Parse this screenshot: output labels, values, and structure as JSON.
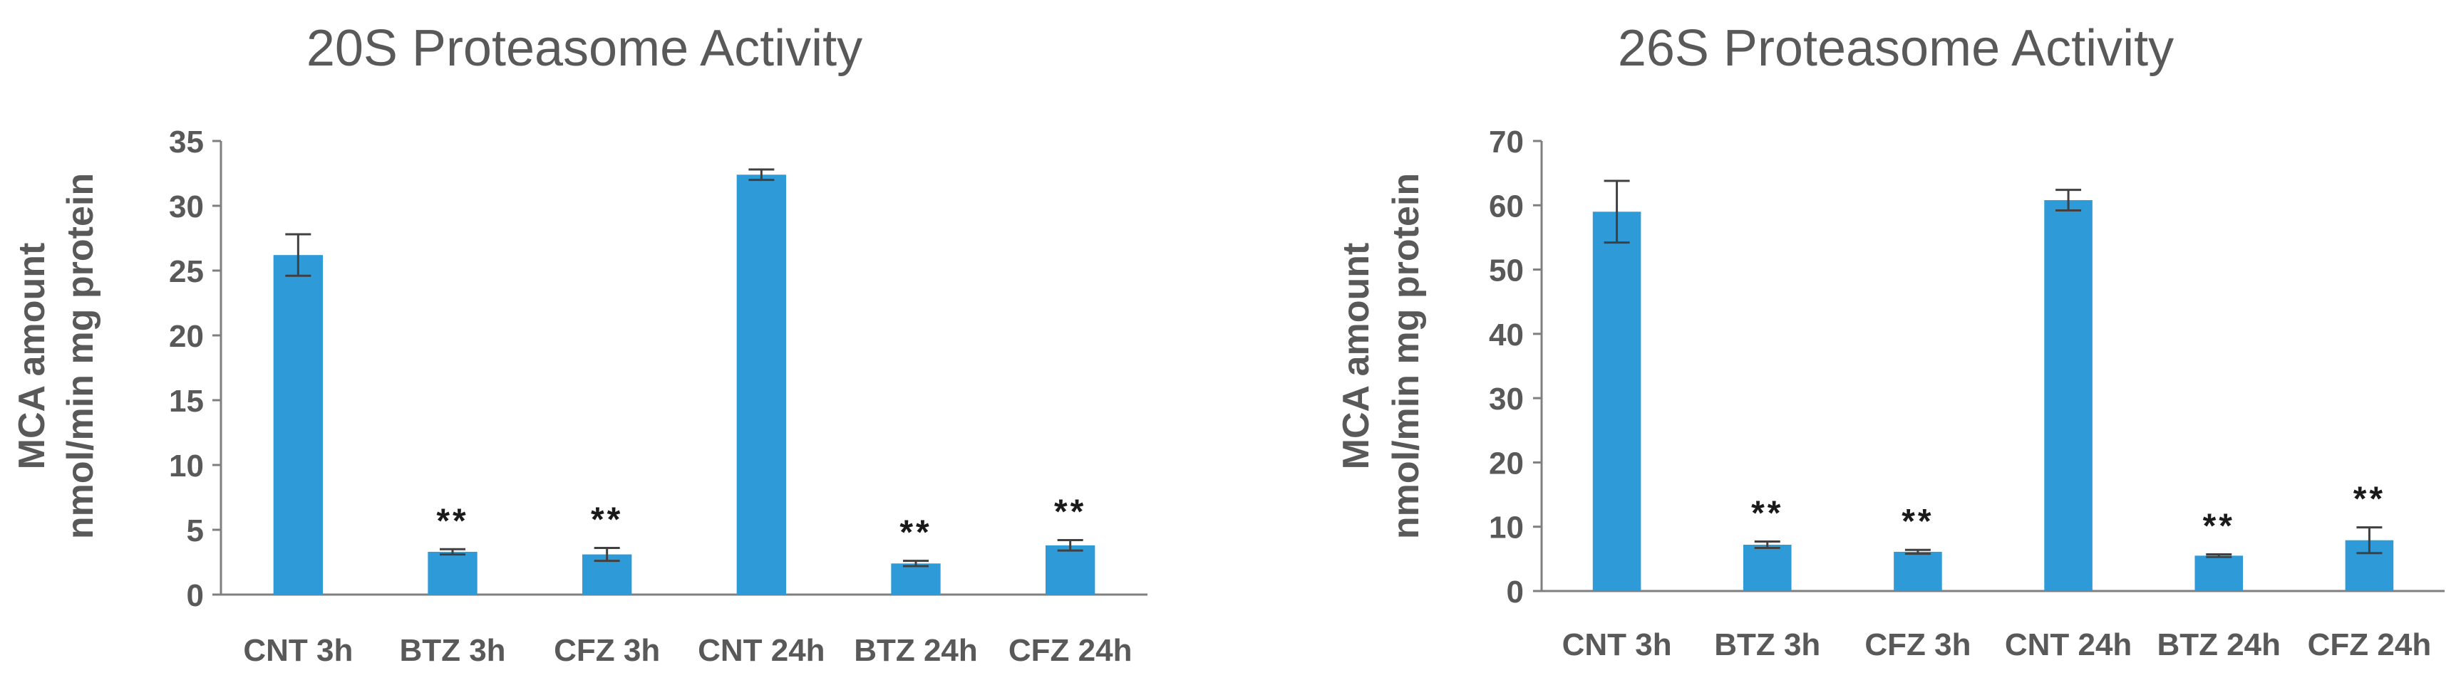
{
  "chart_data": [
    {
      "type": "bar",
      "title": "20S Proteasome Activity",
      "ylabel_lines": [
        "MCA amount",
        "nmol/min mg protein"
      ],
      "xlabel": "",
      "categories": [
        "CNT 3h",
        "BTZ 3h",
        "CFZ 3h",
        "CNT 24h",
        "BTZ 24h",
        "CFZ 24h"
      ],
      "values": [
        26.2,
        3.3,
        3.1,
        32.4,
        2.4,
        3.8
      ],
      "errors": [
        1.6,
        0.2,
        0.5,
        0.4,
        0.2,
        0.4
      ],
      "annotations": [
        "",
        "**",
        "**",
        "",
        "**",
        "**"
      ],
      "ylim": [
        0,
        35
      ],
      "yticks": [
        0,
        5,
        10,
        15,
        20,
        25,
        30,
        35
      ],
      "bar_color": "#2E9BD8",
      "grid": false,
      "legend": "none"
    },
    {
      "type": "bar",
      "title": "26S Proteasome Activity",
      "ylabel_lines": [
        "MCA amount",
        "nmol/min mg protein"
      ],
      "xlabel": "",
      "categories": [
        "CNT 3h",
        "BTZ 3h",
        "CFZ 3h",
        "CNT 24h",
        "BTZ 24h",
        "CFZ 24h"
      ],
      "values": [
        59.0,
        7.2,
        6.1,
        60.8,
        5.5,
        7.9
      ],
      "errors": [
        4.8,
        0.5,
        0.3,
        1.6,
        0.2,
        2.0
      ],
      "annotations": [
        "",
        "**",
        "**",
        "",
        "**",
        "**"
      ],
      "ylim": [
        0,
        70
      ],
      "yticks": [
        0,
        10,
        20,
        30,
        40,
        50,
        60,
        70
      ],
      "bar_color": "#2E9BD8",
      "grid": false,
      "legend": "none"
    }
  ]
}
